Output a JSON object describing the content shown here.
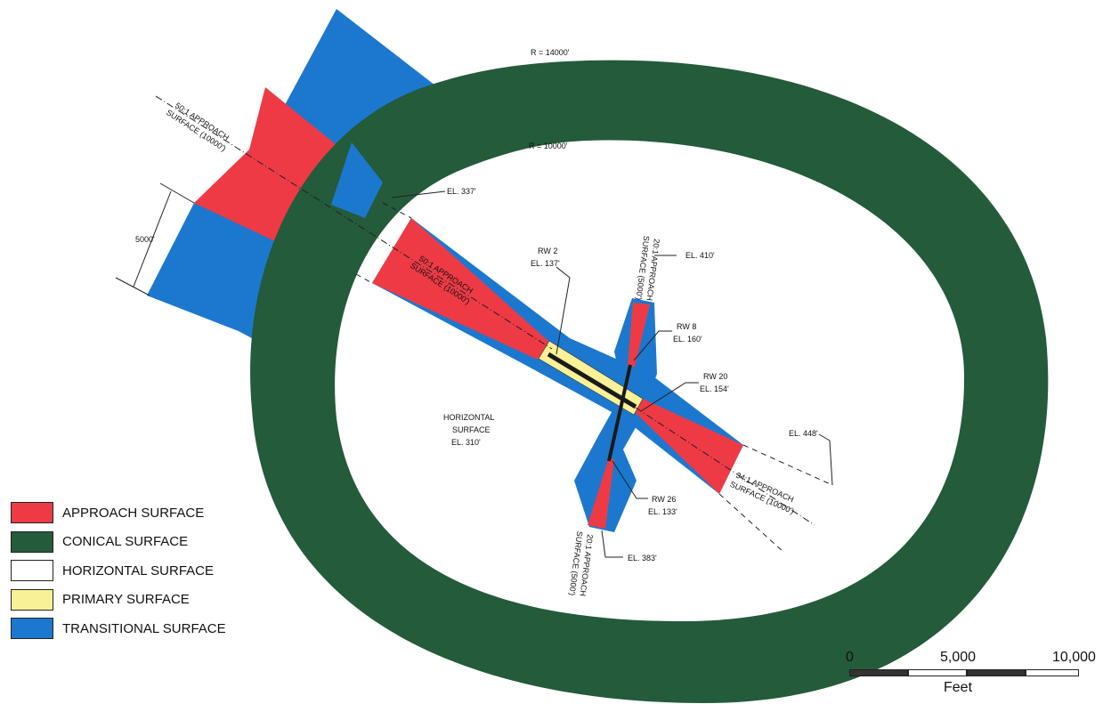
{
  "colors": {
    "approach": "#ee3a45",
    "conical": "#235b3b",
    "horizontal": "#ffffff",
    "primary": "#f8f197",
    "transitional": "#1c78cf",
    "runway": "#1a1a1a"
  },
  "labels": {
    "radius_outer": "R = 14000'",
    "radius_inner": "R = 10000'",
    "nw_approach_line1": "50:1 APPROACH",
    "nw_approach_line2": "SURFACE (10000')",
    "nw_approach_inner_line1": "50:1 APPROACH",
    "nw_approach_inner_line2": "SURFACE (10000')",
    "width_5000": "5000'",
    "el_337": "EL. 337'",
    "rw2_name": "RW 2",
    "rw2_el": "EL. 137'",
    "n_approach_line1": "20:1 APPROACH",
    "n_approach_line2": "SURFACE (5000')",
    "el_410": "EL. 410'",
    "rw8_name": "RW 8",
    "rw8_el": "EL. 160'",
    "rw20_name": "RW 20",
    "rw20_el": "EL. 154'",
    "el_448": "EL. 448'",
    "se_approach_line1": "34:1 APPROACH",
    "se_approach_line2": "SURFACE (10000')",
    "horizontal_line1": "HORIZONTAL",
    "horizontal_line2": "SURFACE",
    "horizontal_line3": "EL. 310'",
    "rw26_name": "RW 26",
    "rw26_el": "EL. 133'",
    "s_approach_line1": "20:1 APPROACH",
    "s_approach_line2": "SURFACE (5000')",
    "el_383": "EL. 383'"
  },
  "legend": [
    {
      "label": "APPROACH SURFACE",
      "color": "#ee3a45"
    },
    {
      "label": "CONICAL SURFACE",
      "color": "#235b3b"
    },
    {
      "label": "HORIZONTAL SURFACE",
      "color": "#ffffff"
    },
    {
      "label": "PRIMARY SURFACE",
      "color": "#f8f197"
    },
    {
      "label": "TRANSITIONAL SURFACE",
      "color": "#1c78cf"
    }
  ],
  "scale": {
    "ticks": [
      "0",
      "5,000",
      "10,000"
    ],
    "unit": "Feet"
  }
}
